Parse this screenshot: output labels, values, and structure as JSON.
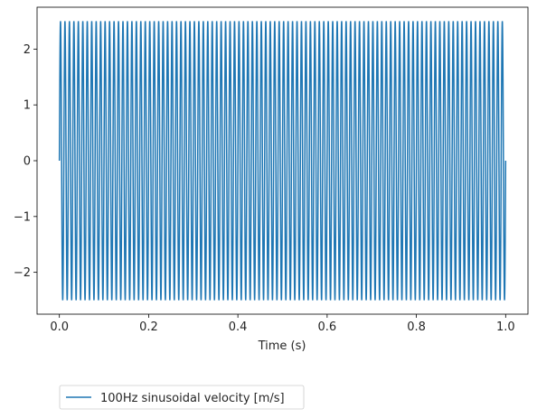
{
  "chart_data": {
    "type": "line",
    "title": "",
    "xlabel": "Time (s)",
    "ylabel": "",
    "xlim": [
      -0.05,
      1.05
    ],
    "ylim": [
      -2.75,
      2.75
    ],
    "xticks": [
      0.0,
      0.2,
      0.4,
      0.6,
      0.8,
      1.0
    ],
    "xtick_labels": [
      "0.0",
      "0.2",
      "0.4",
      "0.6",
      "0.8",
      "1.0"
    ],
    "yticks": [
      -2,
      -1,
      0,
      1,
      2
    ],
    "ytick_labels": [
      "−2",
      "−1",
      "0",
      "1",
      "2"
    ],
    "grid": false,
    "legend_placement": "below-left",
    "series": [
      {
        "name": "100Hz sinusoidal velocity [m/s]",
        "color": "#1f77b4",
        "function": "sine",
        "frequency_hz": 100,
        "amplitude": 2.5,
        "x_start": 0.0,
        "x_end": 1.0
      }
    ]
  }
}
